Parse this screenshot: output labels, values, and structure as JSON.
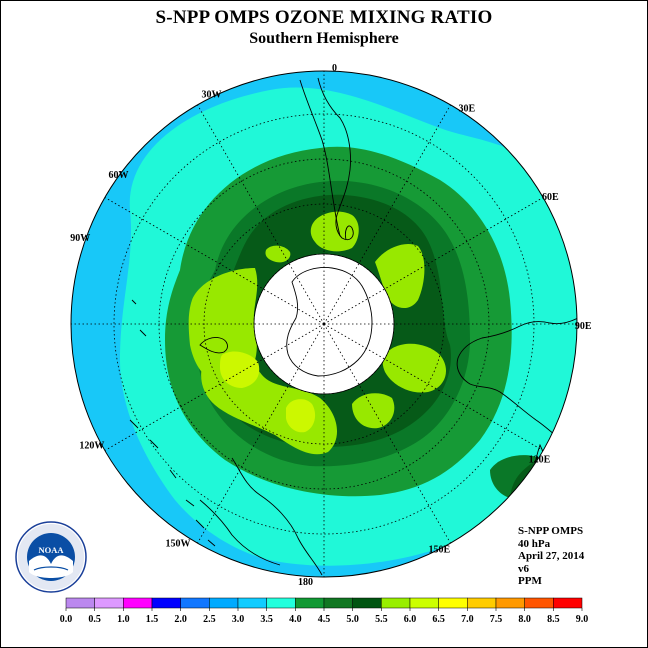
{
  "title": "S-NPP OMPS OZONE MIXING RATIO",
  "subtitle": "Southern Hemisphere",
  "longitude_labels": [
    "90W",
    "60W",
    "30W",
    "0",
    "30E",
    "60E",
    "90E",
    "120E",
    "150E",
    "180",
    "150W",
    "120W"
  ],
  "info": {
    "instrument": "S-NPP OMPS",
    "level": "40 hPa",
    "date": "April 27, 2014",
    "version": "v6",
    "units": "PPM"
  },
  "logo": {
    "text": "NOAA",
    "ring_text": "NATIONAL OCEANIC AND ATMOSPHERIC ADMINISTRATION · U.S. DEPARTMENT OF COMMERCE"
  },
  "colorbar": {
    "ticks": [
      "0.0",
      "0.5",
      "1.0",
      "1.5",
      "2.0",
      "2.5",
      "3.0",
      "3.5",
      "4.0",
      "4.5",
      "5.0",
      "5.5",
      "6.0",
      "6.5",
      "7.0",
      "7.5",
      "8.0",
      "8.5",
      "9.0"
    ],
    "colors": [
      "#bb88ee",
      "#dd99ff",
      "#ff00ff",
      "#0000ff",
      "#1177ff",
      "#00aaff",
      "#11ccff",
      "#22ffdd",
      "#119933",
      "#117722",
      "#005511",
      "#99ee00",
      "#ccff00",
      "#ffff00",
      "#ffcc00",
      "#ff9900",
      "#ff5500",
      "#ff0000",
      "#885533"
    ]
  },
  "map_colors": {
    "ocean_band_3_0": "#18c8f8",
    "band_3_5": "#20f8d8",
    "band_4_0": "#169a36",
    "band_4_5": "#0a7828",
    "band_5_0": "#065a18",
    "band_5_5": "#98e800",
    "band_6_0": "#ccf800",
    "polar_night": "#ffffff"
  }
}
